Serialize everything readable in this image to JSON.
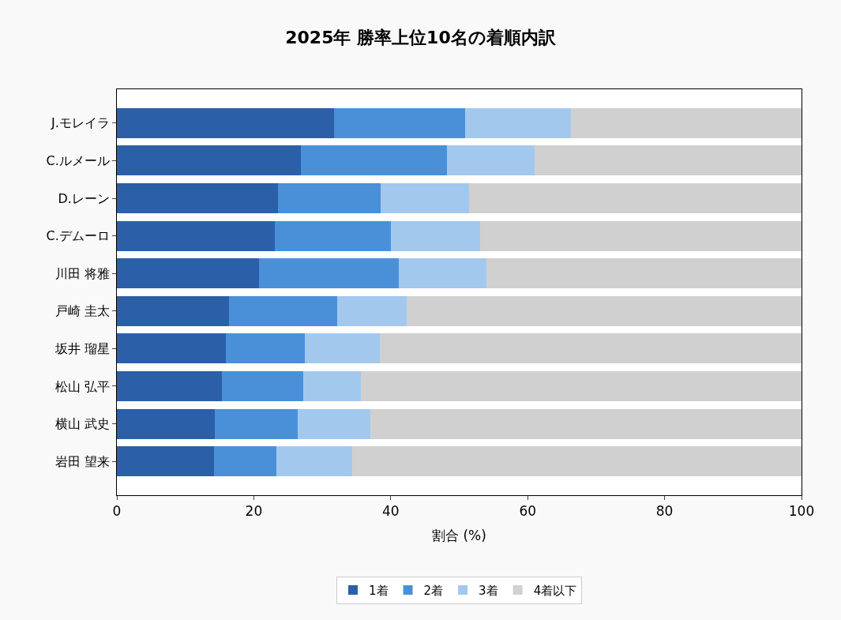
{
  "chart_data": {
    "type": "bar",
    "orientation": "horizontal",
    "stacked": true,
    "title": "2025年 勝率上位10名の着順内訳",
    "xlabel": "割合 (%)",
    "categories": [
      "J.モレイラ",
      "C.ルメール",
      "D.レーン",
      "C.デムーロ",
      "川田 将雅",
      "戸崎 圭太",
      "坂井 瑠星",
      "松山 弘平",
      "横山 武史",
      "岩田 望来"
    ],
    "series": [
      {
        "name": "1着",
        "color": "#2b5fa8",
        "values": [
          31.7,
          26.9,
          23.5,
          23.1,
          20.8,
          16.4,
          15.9,
          15.3,
          14.3,
          14.2
        ]
      },
      {
        "name": "2着",
        "color": "#4a90d9",
        "values": [
          19.2,
          21.3,
          15.0,
          16.9,
          20.4,
          15.8,
          11.6,
          11.9,
          12.1,
          9.1
        ]
      },
      {
        "name": "3着",
        "color": "#a3c8ee",
        "values": [
          15.4,
          12.8,
          12.9,
          13.1,
          12.8,
          10.1,
          10.9,
          8.4,
          10.6,
          11.1
        ]
      },
      {
        "name": "4着以下",
        "color": "#d0d0d0",
        "values": [
          33.7,
          39.0,
          48.6,
          46.9,
          46.0,
          57.7,
          61.6,
          64.4,
          63.0,
          65.6
        ]
      }
    ],
    "xlim": [
      0,
      100
    ],
    "xticks": [
      0,
      20,
      40,
      60,
      80,
      100
    ],
    "legend": "bottom"
  }
}
